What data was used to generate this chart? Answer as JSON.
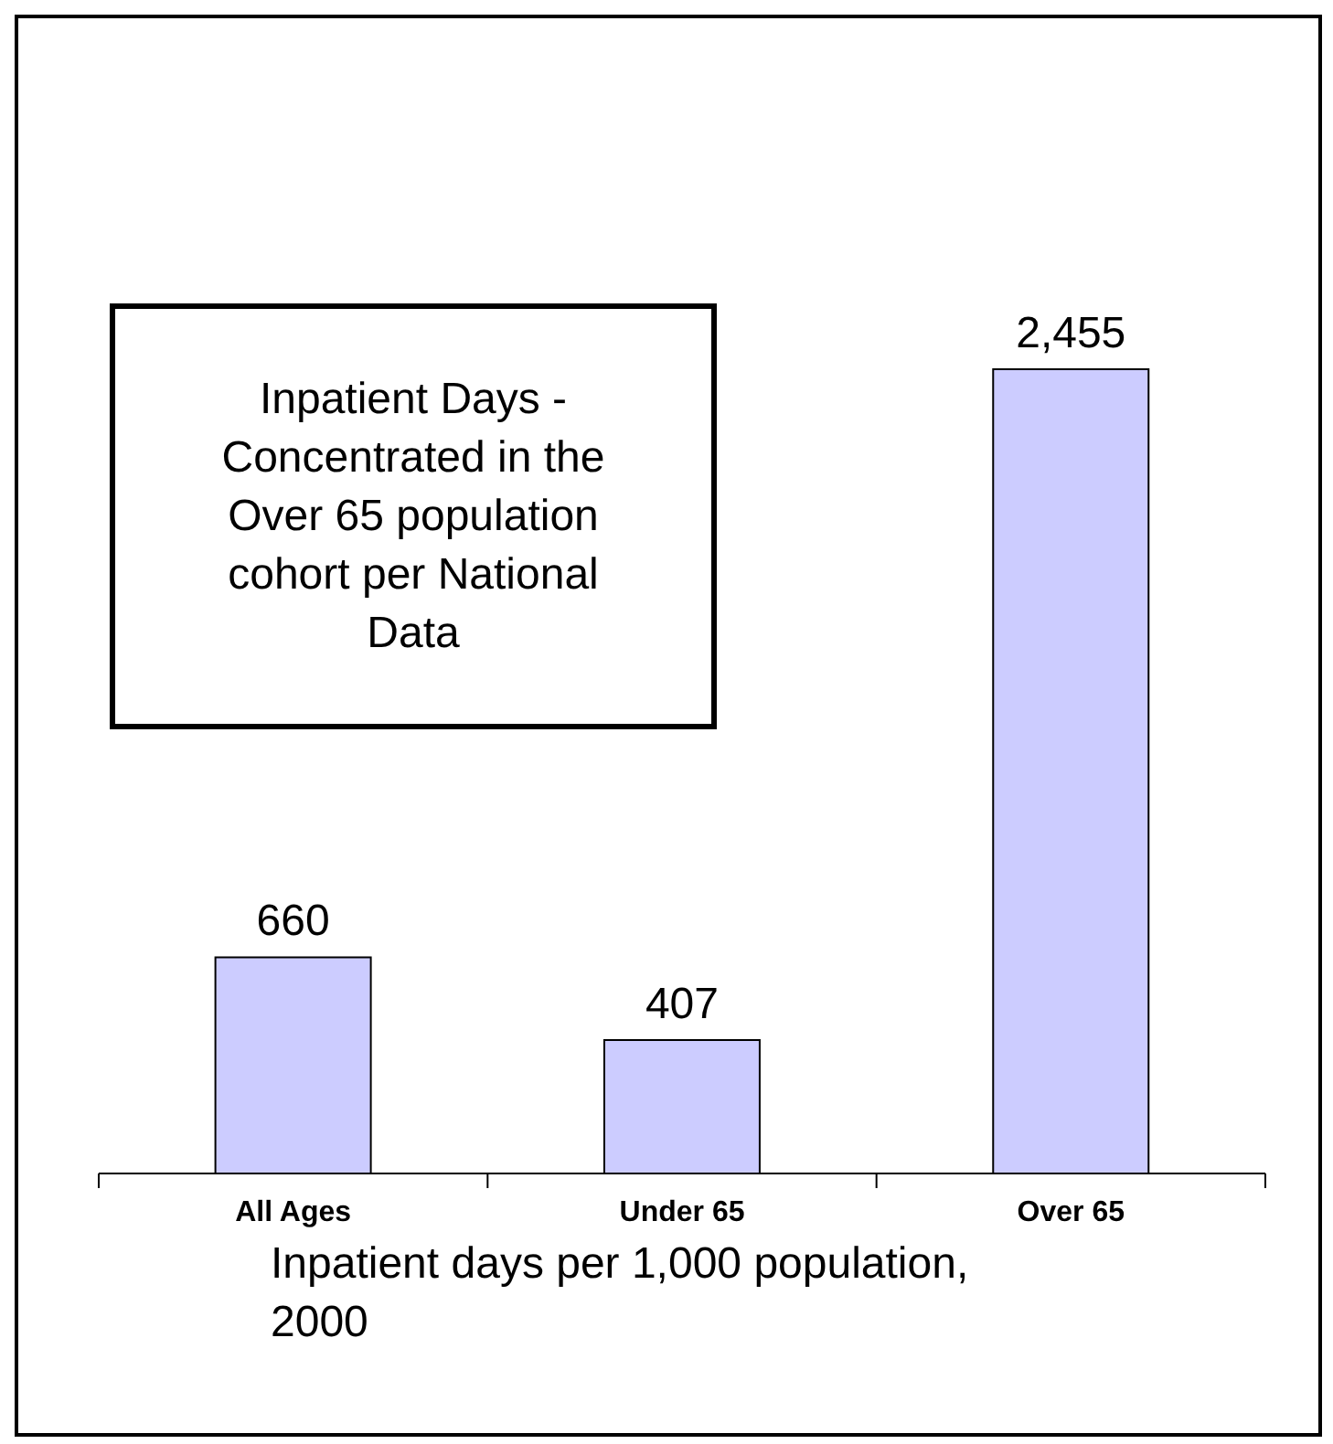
{
  "chart_data": {
    "type": "bar",
    "categories": [
      "All Ages",
      "Under 65",
      "Over 65"
    ],
    "values": [
      660,
      407,
      2455
    ],
    "value_labels": [
      "660",
      "407",
      "2,455"
    ],
    "color": "#ccccff",
    "xlabel": "Inpatient days per 1,000 population, 2000",
    "annotations": [
      "Inpatient Days - Concentrated in the Over 65 population cohort per National Data"
    ]
  }
}
